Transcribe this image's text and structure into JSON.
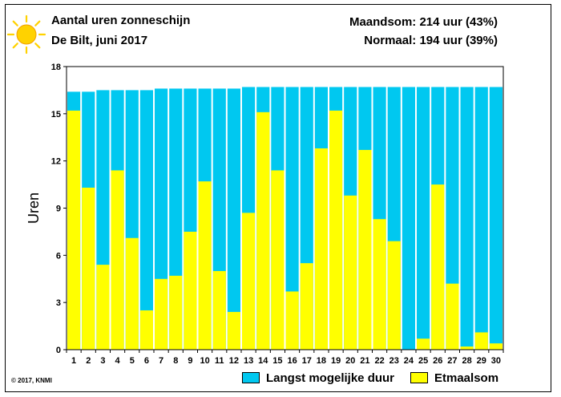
{
  "header": {
    "title": "Aantal uren zonneschijn",
    "subtitle": "De Bilt, juni 2017",
    "month_sum": "Maandsom: 214 uur (43%)",
    "normal": "Normaal: 194 uur (39%)"
  },
  "copyright": "© 2017, KNMI",
  "colors": {
    "possible": "#00c8f0",
    "actual": "#ffff00",
    "sun": "#ffd200"
  },
  "icons": {
    "sun": "sun-icon"
  },
  "chart_data": {
    "type": "bar",
    "title": "Aantal uren zonneschijn",
    "ylabel": "Uren",
    "ylim": [
      0,
      18
    ],
    "yticks": [
      0,
      3,
      6,
      9,
      12,
      15,
      18
    ],
    "categories": [
      "1",
      "2",
      "3",
      "4",
      "5",
      "6",
      "7",
      "8",
      "9",
      "10",
      "11",
      "12",
      "13",
      "14",
      "15",
      "16",
      "17",
      "18",
      "19",
      "20",
      "21",
      "22",
      "23",
      "24",
      "25",
      "26",
      "27",
      "28",
      "29",
      "30"
    ],
    "series": [
      {
        "name": "Langst mogelijke duur",
        "color": "#00c8f0",
        "values": [
          16.4,
          16.4,
          16.5,
          16.5,
          16.5,
          16.5,
          16.6,
          16.6,
          16.6,
          16.6,
          16.6,
          16.6,
          16.7,
          16.7,
          16.7,
          16.7,
          16.7,
          16.7,
          16.7,
          16.7,
          16.7,
          16.7,
          16.7,
          16.7,
          16.7,
          16.7,
          16.7,
          16.7,
          16.7,
          16.7
        ]
      },
      {
        "name": "Etmaalsom",
        "color": "#ffff00",
        "values": [
          15.2,
          10.3,
          5.4,
          11.4,
          7.1,
          2.5,
          4.5,
          4.7,
          7.5,
          10.7,
          5.0,
          2.4,
          8.7,
          15.1,
          11.4,
          3.7,
          5.5,
          12.8,
          15.2,
          9.8,
          12.7,
          8.3,
          6.9,
          0.0,
          0.7,
          10.5,
          4.2,
          0.2,
          1.1,
          0.4
        ]
      }
    ]
  }
}
